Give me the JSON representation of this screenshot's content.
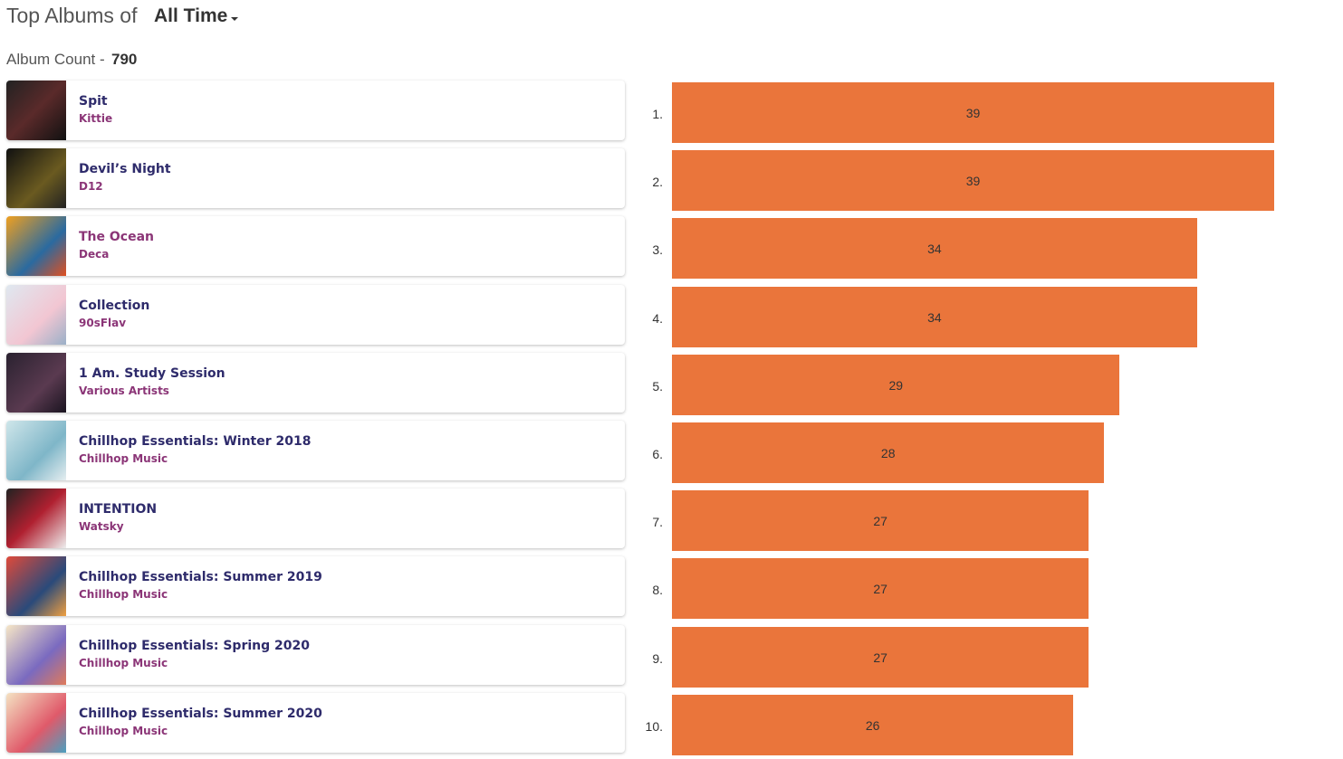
{
  "header": {
    "title": "Top Albums of",
    "period": "All Time"
  },
  "album_count": {
    "label": "Album Count -",
    "value": 790
  },
  "albums": [
    {
      "rank": "1.",
      "title": "Spit",
      "artist": "Kittie",
      "count": 39
    },
    {
      "rank": "2.",
      "title": "Devil’s Night",
      "artist": "D12",
      "count": 39
    },
    {
      "rank": "3.",
      "title": "The Ocean",
      "artist": "Deca",
      "count": 34
    },
    {
      "rank": "4.",
      "title": "Collection",
      "artist": "90sFlav",
      "count": 34
    },
    {
      "rank": "5.",
      "title": "1 Am. Study Session",
      "artist": "Various Artists",
      "count": 29
    },
    {
      "rank": "6.",
      "title": "Chillhop Essentials: Winter 2018",
      "artist": "Chillhop Music",
      "count": 28
    },
    {
      "rank": "7.",
      "title": "INTENTION",
      "artist": "Watsky",
      "count": 27
    },
    {
      "rank": "8.",
      "title": "Chillhop Essentials: Summer 2019",
      "artist": "Chillhop Music",
      "count": 27
    },
    {
      "rank": "9.",
      "title": "Chillhop Essentials: Spring 2020",
      "artist": "Chillhop Music",
      "count": 27
    },
    {
      "rank": "10.",
      "title": "Chillhop Essentials: Summer 2020",
      "artist": "Chillhop Music",
      "count": 26
    }
  ]
}
